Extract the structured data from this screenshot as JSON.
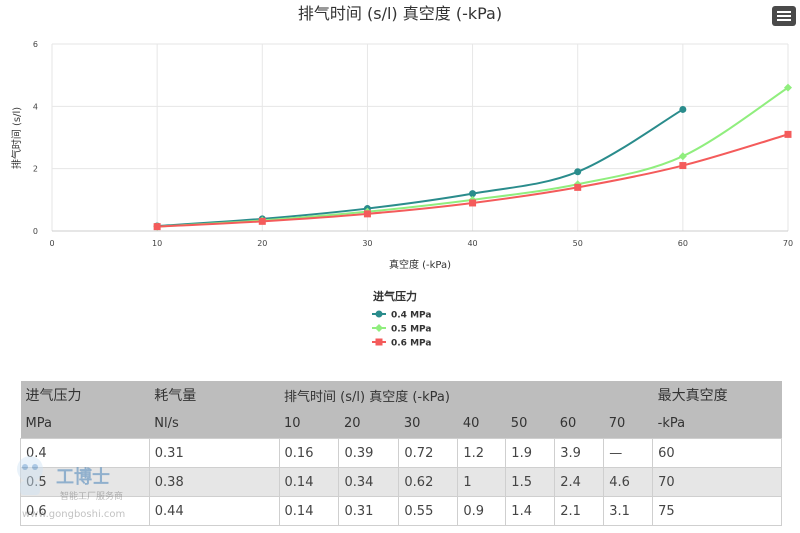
{
  "chart_data": {
    "type": "line",
    "title": "排气时间 (s/l) 真空度 (-kPa)",
    "xlabel": "真空度 (-kPa)",
    "ylabel": "排气时间 (s/l)",
    "xlim": [
      0,
      70
    ],
    "ylim": [
      0,
      6
    ],
    "xticks": [
      0,
      10,
      20,
      30,
      40,
      50,
      60,
      70
    ],
    "yticks": [
      0,
      2,
      4,
      6
    ],
    "grid": true,
    "legend": {
      "title": "进气压力",
      "position": "bottom-center"
    },
    "series": [
      {
        "name": "0.4 MPa",
        "color": "#2a8c8c",
        "marker": "circle",
        "x": [
          10,
          20,
          30,
          40,
          50,
          60
        ],
        "values": [
          0.16,
          0.39,
          0.72,
          1.2,
          1.9,
          3.9
        ]
      },
      {
        "name": "0.5 MPa",
        "color": "#90ee7e",
        "marker": "diamond",
        "x": [
          10,
          20,
          30,
          40,
          50,
          60,
          70
        ],
        "values": [
          0.14,
          0.34,
          0.62,
          1,
          1.5,
          2.4,
          4.6
        ]
      },
      {
        "name": "0.6 MPa",
        "color": "#f45b5b",
        "marker": "square",
        "x": [
          10,
          20,
          30,
          40,
          50,
          60,
          70
        ],
        "values": [
          0.14,
          0.31,
          0.55,
          0.9,
          1.4,
          2.1,
          3.1
        ]
      }
    ]
  },
  "table": {
    "header_row1": [
      "进气压力",
      "耗气量",
      "排气时间 (s/l) 真空度 (-kPa)",
      "最大真空度"
    ],
    "header_row2": [
      "MPa",
      "Nl/s",
      "10",
      "20",
      "30",
      "40",
      "50",
      "60",
      "70",
      "-kPa"
    ],
    "rows": [
      [
        "0.4",
        "0.31",
        "0.16",
        "0.39",
        "0.72",
        "1.2",
        "1.9",
        "3.9",
        "—",
        "60"
      ],
      [
        "0.5",
        "0.38",
        "0.14",
        "0.34",
        "0.62",
        "1",
        "1.5",
        "2.4",
        "4.6",
        "70"
      ],
      [
        "0.6",
        "0.44",
        "0.14",
        "0.31",
        "0.55",
        "0.9",
        "1.4",
        "2.1",
        "3.1",
        "75"
      ]
    ]
  },
  "watermark": {
    "brand": "工博士",
    "slogan": "智能工厂服务商",
    "url": "www.gongboshi.com"
  },
  "icons": {
    "menu": "hamburger-menu-icon"
  }
}
